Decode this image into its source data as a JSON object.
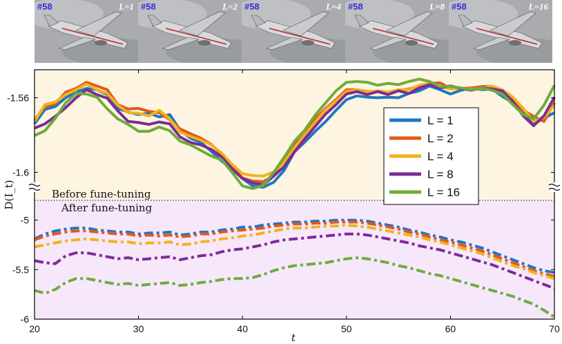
{
  "thumbnails": [
    {
      "id": "#58",
      "label": "L=1"
    },
    {
      "id": "#58",
      "label": "L=2"
    },
    {
      "id": "#58",
      "label": "L=4"
    },
    {
      "id": "#58",
      "label": "L=8"
    },
    {
      "id": "#58",
      "label": "L=16"
    }
  ],
  "chart_data": {
    "type": "line",
    "xlabel": "t",
    "ylabel": "D(I_t)",
    "xlim": [
      20,
      70
    ],
    "xticks": [
      "20",
      "30",
      "40",
      "50",
      "60",
      "70"
    ],
    "colors": {
      "L = 1": "#1f77c0",
      "L = 2": "#e05a1a",
      "L = 4": "#f2b21b",
      "L = 8": "#7b2d96",
      "L = 16": "#6fac3b"
    },
    "background_colors": {
      "upper": "#fdf5e2",
      "lower": "#f7e7fb"
    },
    "legend_position": "right, inside upper panel",
    "legend": [
      "L = 1",
      "L = 2",
      "L = 4",
      "L = 8",
      "L = 16"
    ],
    "annotations": {
      "before": "Before fune-tuning",
      "after": "After fune-tuning"
    },
    "upper_panel": {
      "line_style": "solid",
      "ylim": [
        -1.615,
        -1.545
      ],
      "yticks": [
        "-1.56",
        "-1.6"
      ],
      "x": [
        20,
        21,
        22,
        23,
        24,
        25,
        26,
        27,
        28,
        29,
        30,
        31,
        32,
        33,
        34,
        35,
        36,
        37,
        38,
        39,
        40,
        41,
        42,
        43,
        44,
        45,
        46,
        47,
        48,
        49,
        50,
        51,
        52,
        53,
        54,
        55,
        56,
        57,
        58,
        59,
        60,
        61,
        62,
        63,
        64,
        65,
        66,
        67,
        68,
        69,
        70
      ],
      "series": [
        {
          "name": "L = 1",
          "values": [
            -1.574,
            -1.5663,
            -1.5647,
            -1.56,
            -1.557,
            -1.555,
            -1.5557,
            -1.5583,
            -1.5657,
            -1.5677,
            -1.569,
            -1.5683,
            -1.5703,
            -1.569,
            -1.5773,
            -1.5817,
            -1.584,
            -1.5887,
            -1.594,
            -1.5983,
            -1.6033,
            -1.6073,
            -1.608,
            -1.6053,
            -1.599,
            -1.589,
            -1.5837,
            -1.578,
            -1.5727,
            -1.5667,
            -1.561,
            -1.559,
            -1.5597,
            -1.56,
            -1.5597,
            -1.56,
            -1.5577,
            -1.5563,
            -1.5537,
            -1.5557,
            -1.558,
            -1.556,
            -1.5547,
            -1.5557,
            -1.5553,
            -1.5593,
            -1.5627,
            -1.5677,
            -1.574,
            -1.571,
            -1.568
          ]
        },
        {
          "name": "L = 2",
          "values": [
            -1.572,
            -1.5647,
            -1.5633,
            -1.557,
            -1.555,
            -1.5517,
            -1.5537,
            -1.5557,
            -1.5637,
            -1.566,
            -1.5657,
            -1.5673,
            -1.568,
            -1.5717,
            -1.5767,
            -1.5793,
            -1.5817,
            -1.585,
            -1.5903,
            -1.597,
            -1.603,
            -1.6047,
            -1.605,
            -1.6017,
            -1.593,
            -1.5853,
            -1.5797,
            -1.5713,
            -1.5657,
            -1.561,
            -1.5557,
            -1.5557,
            -1.5567,
            -1.5567,
            -1.5573,
            -1.5563,
            -1.5553,
            -1.554,
            -1.5523,
            -1.552,
            -1.555,
            -1.555,
            -1.5547,
            -1.554,
            -1.554,
            -1.5577,
            -1.5607,
            -1.5667,
            -1.57,
            -1.5727,
            -1.5627
          ]
        },
        {
          "name": "L = 4",
          "values": [
            -1.5727,
            -1.5637,
            -1.5623,
            -1.5583,
            -1.5557,
            -1.5527,
            -1.5557,
            -1.5577,
            -1.564,
            -1.568,
            -1.5683,
            -1.5697,
            -1.5667,
            -1.5713,
            -1.5783,
            -1.5807,
            -1.5827,
            -1.5853,
            -1.5897,
            -1.5957,
            -1.6007,
            -1.6017,
            -1.602,
            -1.5997,
            -1.5947,
            -1.5867,
            -1.58,
            -1.573,
            -1.5663,
            -1.5617,
            -1.5567,
            -1.5557,
            -1.557,
            -1.5563,
            -1.557,
            -1.5557,
            -1.5557,
            -1.5533,
            -1.5523,
            -1.554,
            -1.5553,
            -1.555,
            -1.5553,
            -1.5553,
            -1.5537,
            -1.5557,
            -1.5597,
            -1.5657,
            -1.5727,
            -1.5707,
            -1.564
          ]
        },
        {
          "name": "L = 8",
          "values": [
            -1.5763,
            -1.574,
            -1.57,
            -1.5653,
            -1.56,
            -1.5557,
            -1.5583,
            -1.5603,
            -1.567,
            -1.5727,
            -1.5733,
            -1.5743,
            -1.573,
            -1.574,
            -1.581,
            -1.584,
            -1.5853,
            -1.5877,
            -1.5917,
            -1.598,
            -1.6033,
            -1.6057,
            -1.6067,
            -1.602,
            -1.597,
            -1.589,
            -1.582,
            -1.5753,
            -1.5687,
            -1.5637,
            -1.558,
            -1.5567,
            -1.5583,
            -1.5567,
            -1.5583,
            -1.5563,
            -1.5577,
            -1.5547,
            -1.553,
            -1.5547,
            -1.5537,
            -1.555,
            -1.556,
            -1.5547,
            -1.5553,
            -1.5563,
            -1.562,
            -1.5697,
            -1.575,
            -1.5697,
            -1.5597
          ]
        },
        {
          "name": "L = 16",
          "values": [
            -1.5803,
            -1.5777,
            -1.571,
            -1.5627,
            -1.5577,
            -1.558,
            -1.5597,
            -1.566,
            -1.5713,
            -1.5743,
            -1.578,
            -1.578,
            -1.5757,
            -1.5777,
            -1.5833,
            -1.5853,
            -1.5883,
            -1.5913,
            -1.5933,
            -1.6,
            -1.6073,
            -1.6087,
            -1.607,
            -1.6,
            -1.592,
            -1.5833,
            -1.5773,
            -1.5693,
            -1.5627,
            -1.5563,
            -1.5517,
            -1.5513,
            -1.5517,
            -1.5533,
            -1.5523,
            -1.553,
            -1.5513,
            -1.55,
            -1.5513,
            -1.554,
            -1.554,
            -1.5547,
            -1.5557,
            -1.5547,
            -1.556,
            -1.558,
            -1.5637,
            -1.569,
            -1.5713,
            -1.564,
            -1.5533
          ]
        }
      ]
    },
    "lower_panel": {
      "line_style": "dash-dot",
      "ylim": [
        -6,
        -4.8
      ],
      "yticks": [
        "-5",
        "-5.5",
        "-6"
      ],
      "x": [
        20,
        21,
        22,
        23,
        24,
        25,
        26,
        27,
        28,
        29,
        30,
        31,
        32,
        33,
        34,
        35,
        36,
        37,
        38,
        39,
        40,
        41,
        42,
        43,
        44,
        45,
        46,
        47,
        48,
        49,
        50,
        51,
        52,
        53,
        54,
        55,
        56,
        57,
        58,
        59,
        60,
        61,
        62,
        63,
        64,
        65,
        66,
        67,
        68,
        69,
        70
      ],
      "series": [
        {
          "name": "L = 1",
          "values": [
            -5.19,
            -5.14,
            -5.11,
            -5.09,
            -5.08,
            -5.08,
            -5.1,
            -5.11,
            -5.12,
            -5.12,
            -5.14,
            -5.13,
            -5.13,
            -5.12,
            -5.15,
            -5.14,
            -5.12,
            -5.12,
            -5.1,
            -5.09,
            -5.07,
            -5.07,
            -5.05,
            -5.04,
            -5.03,
            -5.02,
            -5.02,
            -5.01,
            -5.01,
            -5.0,
            -5.0,
            -5.0,
            -5.01,
            -5.03,
            -5.05,
            -5.07,
            -5.1,
            -5.12,
            -5.15,
            -5.17,
            -5.2,
            -5.22,
            -5.25,
            -5.28,
            -5.32,
            -5.36,
            -5.4,
            -5.44,
            -5.48,
            -5.51,
            -5.53
          ]
        },
        {
          "name": "L = 2",
          "values": [
            -5.2,
            -5.16,
            -5.14,
            -5.12,
            -5.11,
            -5.11,
            -5.12,
            -5.13,
            -5.14,
            -5.14,
            -5.16,
            -5.15,
            -5.16,
            -5.15,
            -5.17,
            -5.16,
            -5.14,
            -5.14,
            -5.12,
            -5.11,
            -5.1,
            -5.09,
            -5.08,
            -5.06,
            -5.05,
            -5.04,
            -5.04,
            -5.03,
            -5.03,
            -5.02,
            -5.02,
            -5.02,
            -5.03,
            -5.05,
            -5.07,
            -5.09,
            -5.12,
            -5.14,
            -5.17,
            -5.2,
            -5.22,
            -5.25,
            -5.28,
            -5.31,
            -5.35,
            -5.39,
            -5.43,
            -5.47,
            -5.51,
            -5.54,
            -5.57
          ]
        },
        {
          "name": "L = 4",
          "values": [
            -5.27,
            -5.25,
            -5.23,
            -5.21,
            -5.2,
            -5.19,
            -5.2,
            -5.21,
            -5.22,
            -5.22,
            -5.24,
            -5.23,
            -5.23,
            -5.22,
            -5.25,
            -5.24,
            -5.22,
            -5.21,
            -5.19,
            -5.18,
            -5.16,
            -5.15,
            -5.13,
            -5.11,
            -5.09,
            -5.08,
            -5.08,
            -5.07,
            -5.06,
            -5.06,
            -5.05,
            -5.06,
            -5.07,
            -5.09,
            -5.11,
            -5.13,
            -5.15,
            -5.17,
            -5.2,
            -5.22,
            -5.25,
            -5.28,
            -5.31,
            -5.34,
            -5.38,
            -5.42,
            -5.46,
            -5.49,
            -5.53,
            -5.56,
            -5.59
          ]
        },
        {
          "name": "L = 8",
          "values": [
            -5.41,
            -5.43,
            -5.44,
            -5.36,
            -5.33,
            -5.33,
            -5.35,
            -5.37,
            -5.39,
            -5.38,
            -5.4,
            -5.39,
            -5.38,
            -5.37,
            -5.4,
            -5.38,
            -5.36,
            -5.35,
            -5.32,
            -5.3,
            -5.29,
            -5.27,
            -5.25,
            -5.22,
            -5.2,
            -5.19,
            -5.18,
            -5.17,
            -5.16,
            -5.15,
            -5.14,
            -5.14,
            -5.15,
            -5.17,
            -5.19,
            -5.21,
            -5.23,
            -5.26,
            -5.28,
            -5.3,
            -5.33,
            -5.36,
            -5.39,
            -5.42,
            -5.45,
            -5.49,
            -5.53,
            -5.57,
            -5.61,
            -5.65,
            -5.69
          ]
        },
        {
          "name": "L = 16",
          "values": [
            -5.71,
            -5.74,
            -5.7,
            -5.63,
            -5.59,
            -5.59,
            -5.61,
            -5.63,
            -5.65,
            -5.64,
            -5.66,
            -5.65,
            -5.64,
            -5.63,
            -5.66,
            -5.65,
            -5.63,
            -5.62,
            -5.6,
            -5.59,
            -5.59,
            -5.58,
            -5.55,
            -5.51,
            -5.48,
            -5.46,
            -5.45,
            -5.44,
            -5.43,
            -5.41,
            -5.39,
            -5.38,
            -5.39,
            -5.41,
            -5.43,
            -5.46,
            -5.48,
            -5.51,
            -5.54,
            -5.56,
            -5.59,
            -5.62,
            -5.65,
            -5.68,
            -5.71,
            -5.74,
            -5.77,
            -5.81,
            -5.85,
            -5.91,
            -5.98
          ]
        }
      ]
    }
  }
}
